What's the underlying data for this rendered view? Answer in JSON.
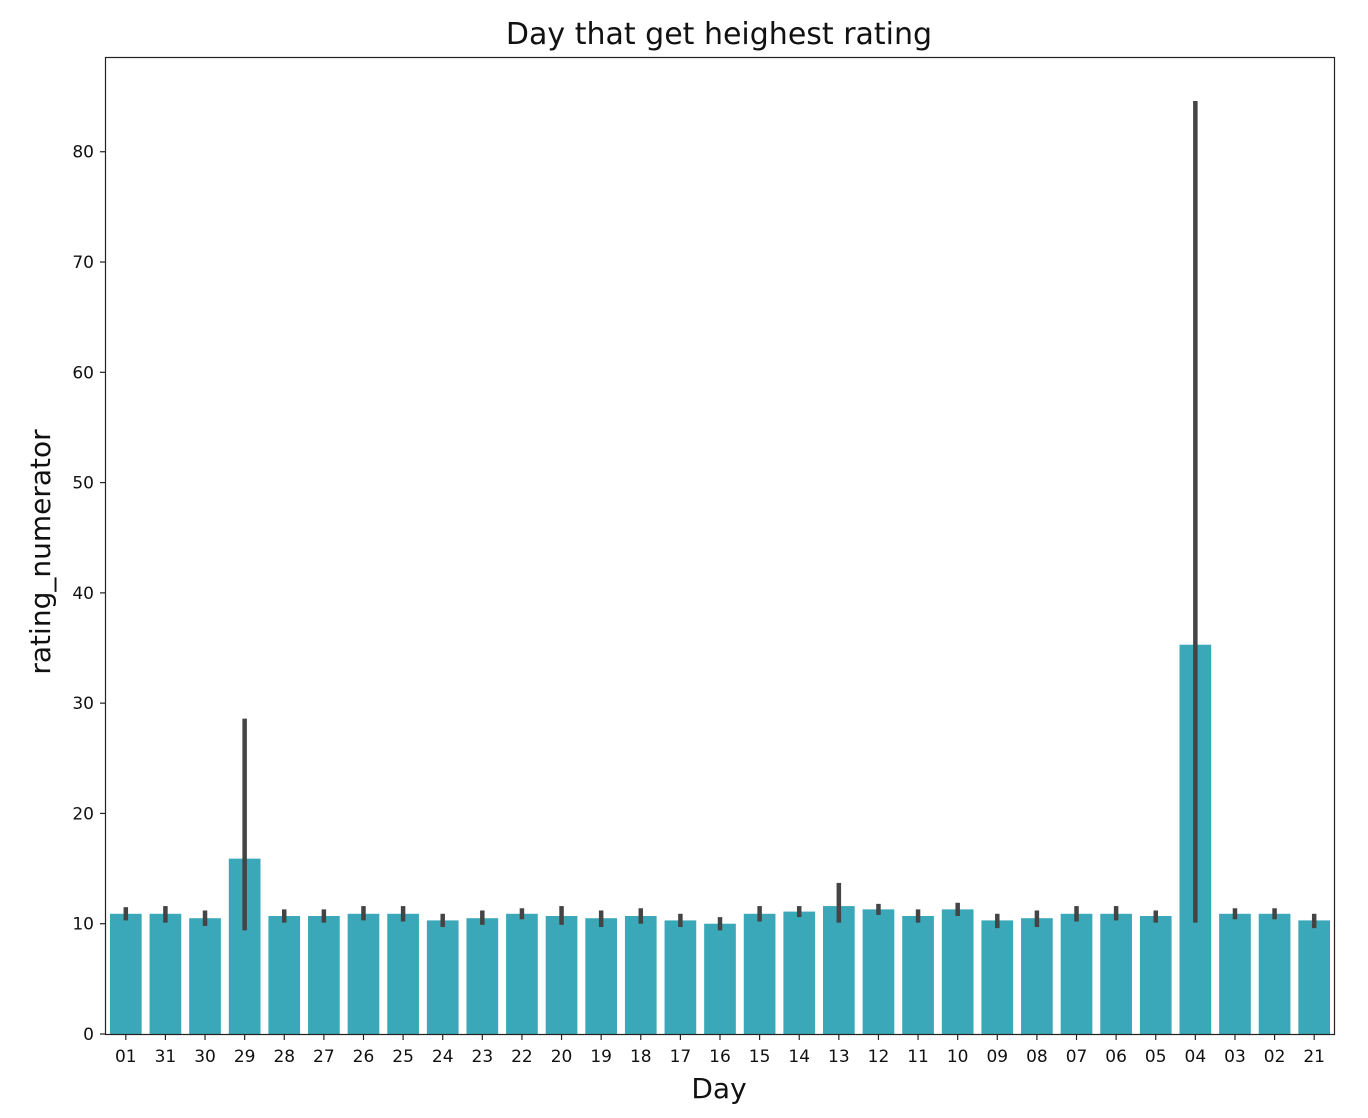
{
  "chart_data": {
    "type": "bar",
    "title": "Day that get heighest rating",
    "xlabel": "Day",
    "ylabel": "rating_numerator",
    "ylim": [
      0,
      88.5
    ],
    "yticks": [
      0,
      10,
      20,
      30,
      40,
      50,
      60,
      70,
      80
    ],
    "grid": false,
    "legend": "none",
    "bar_color": "#3aa8b8",
    "error_bar_color": "#444444",
    "categories": [
      "01",
      "31",
      "30",
      "29",
      "28",
      "27",
      "26",
      "25",
      "24",
      "23",
      "22",
      "20",
      "19",
      "18",
      "17",
      "16",
      "15",
      "14",
      "13",
      "12",
      "11",
      "10",
      "09",
      "08",
      "07",
      "06",
      "05",
      "04",
      "03",
      "02",
      "21"
    ],
    "values": [
      10.9,
      10.9,
      10.5,
      15.9,
      10.7,
      10.7,
      10.9,
      10.9,
      10.3,
      10.5,
      10.9,
      10.7,
      10.5,
      10.7,
      10.3,
      10.0,
      10.9,
      11.1,
      11.6,
      11.3,
      10.7,
      11.3,
      10.3,
      10.5,
      10.9,
      10.9,
      10.7,
      35.3,
      10.9,
      10.9,
      10.3
    ],
    "error_low": [
      10.3,
      10.1,
      9.8,
      9.4,
      10.1,
      10.1,
      10.3,
      10.2,
      9.7,
      9.9,
      10.4,
      9.9,
      9.7,
      10.0,
      9.7,
      9.4,
      10.2,
      10.6,
      10.1,
      10.8,
      10.1,
      10.7,
      9.6,
      9.7,
      10.2,
      10.3,
      10.1,
      10.1,
      10.4,
      10.4,
      9.6
    ],
    "error_high": [
      11.5,
      11.6,
      11.2,
      28.6,
      11.3,
      11.3,
      11.6,
      11.6,
      10.9,
      11.2,
      11.4,
      11.6,
      11.2,
      11.4,
      10.9,
      10.6,
      11.6,
      11.6,
      13.7,
      11.8,
      11.3,
      11.9,
      10.9,
      11.2,
      11.6,
      11.6,
      11.2,
      84.6,
      11.4,
      11.4,
      10.9
    ]
  }
}
